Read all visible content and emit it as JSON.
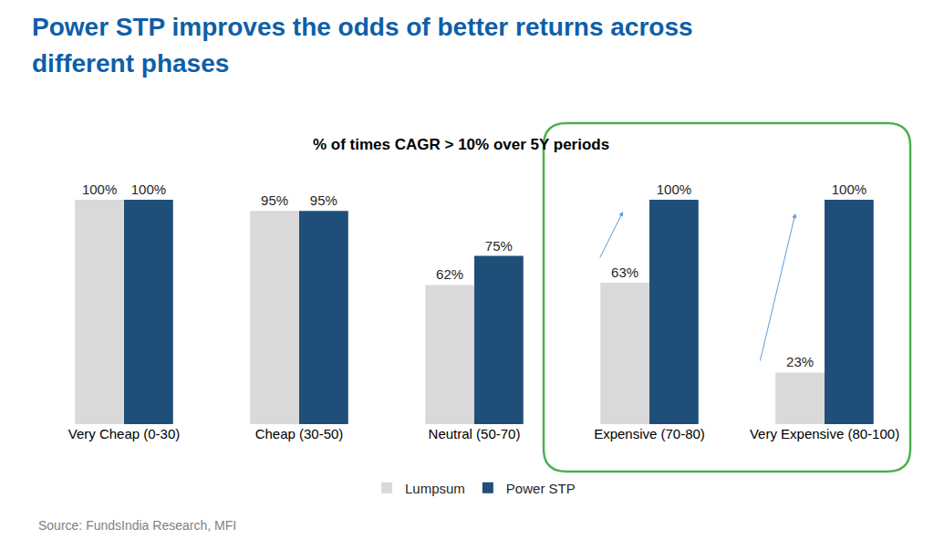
{
  "chart_data": {
    "type": "bar",
    "title": "Power STP improves the odds of better returns across different phases",
    "subtitle": "% of times CAGR > 10% over 5Y periods",
    "source": "Source: FundsIndia Research, MFI",
    "categories": [
      "Very Cheap (0-30)",
      "Cheap (30-50)",
      "Neutral (50-70)",
      "Expensive (70-80)",
      "Very Expensive (80-100)"
    ],
    "series": [
      {
        "name": "Lumpsum",
        "color": "#d9d9d9",
        "values": [
          100,
          95,
          62,
          63,
          23
        ],
        "value_labels": [
          "100%",
          "95%",
          "62%",
          "63%",
          "23%"
        ]
      },
      {
        "name": "Power STP",
        "color": "#1f4e79",
        "values": [
          100,
          95,
          75,
          100,
          100
        ],
        "value_labels": [
          "100%",
          "95%",
          "75%",
          "100%",
          "100%"
        ]
      }
    ],
    "ylim": [
      0,
      100
    ],
    "grid": false,
    "legend": "bottom",
    "data_labels": true,
    "tick_labels": "x"
  }
}
